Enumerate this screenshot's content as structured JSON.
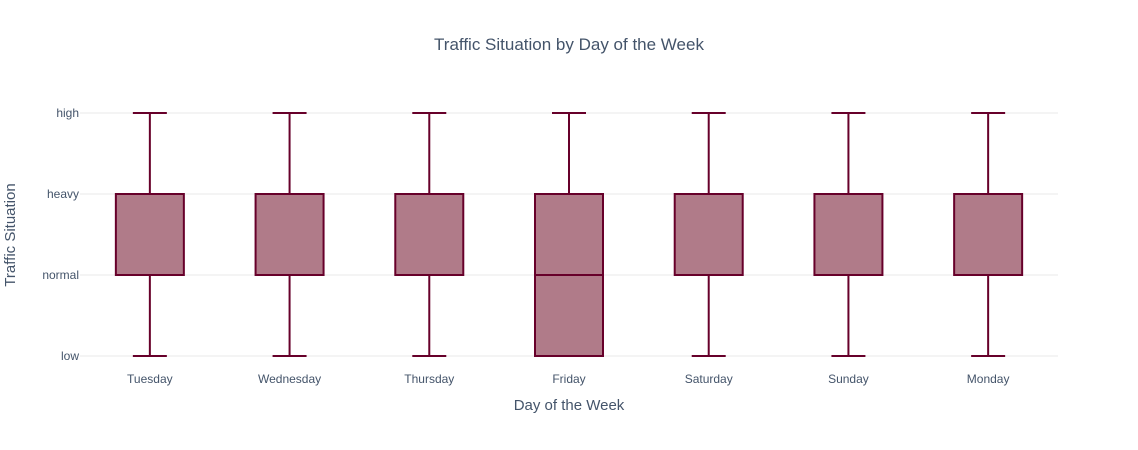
{
  "chart_data": {
    "type": "box",
    "title": "Traffic Situation by Day of the Week",
    "xlabel": "Day of the Week",
    "ylabel": "Traffic Situation",
    "categories": [
      "Tuesday",
      "Wednesday",
      "Thursday",
      "Friday",
      "Saturday",
      "Sunday",
      "Monday"
    ],
    "y_levels": [
      "low",
      "normal",
      "heavy",
      "high"
    ],
    "boxes": [
      {
        "category": "Tuesday",
        "min": "low",
        "q1": "normal",
        "median": "normal",
        "q3": "heavy",
        "max": "high"
      },
      {
        "category": "Wednesday",
        "min": "low",
        "q1": "normal",
        "median": "normal",
        "q3": "heavy",
        "max": "high"
      },
      {
        "category": "Thursday",
        "min": "low",
        "q1": "normal",
        "median": "normal",
        "q3": "heavy",
        "max": "high"
      },
      {
        "category": "Friday",
        "min": "low",
        "q1": "low",
        "median": "normal",
        "q3": "heavy",
        "max": "high"
      },
      {
        "category": "Saturday",
        "min": "low",
        "q1": "normal",
        "median": "normal",
        "q3": "heavy",
        "max": "high"
      },
      {
        "category": "Sunday",
        "min": "low",
        "q1": "normal",
        "median": "normal",
        "q3": "heavy",
        "max": "high"
      },
      {
        "category": "Monday",
        "min": "low",
        "q1": "normal",
        "median": "normal",
        "q3": "heavy",
        "max": "high"
      }
    ],
    "colors": {
      "line": "#67002a",
      "fill": "#b07b89"
    },
    "grid": true,
    "legend": "none"
  }
}
